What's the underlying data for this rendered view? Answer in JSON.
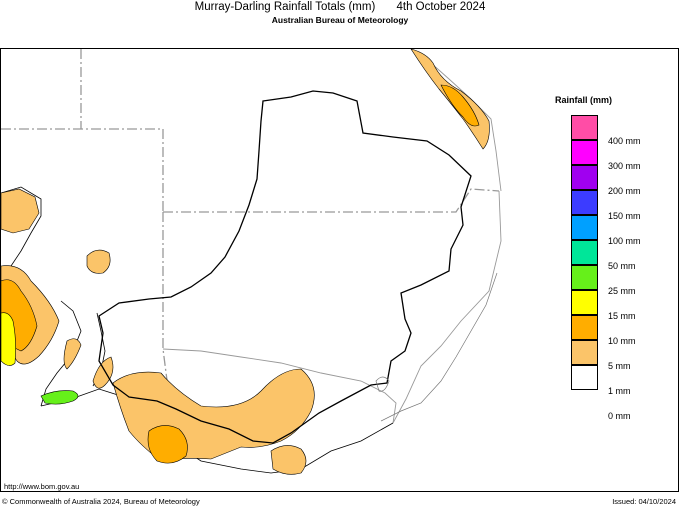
{
  "header": {
    "title": "Murray-Darling Rainfall Totals (mm)",
    "date": "4th October 2024",
    "subtitle": "Australian Bureau of Meteorology"
  },
  "legend": {
    "title": "Rainfall (mm)",
    "items": [
      {
        "label": "400 mm",
        "color": "#ff4da6"
      },
      {
        "label": "300 mm",
        "color": "#ff00ff"
      },
      {
        "label": "200 mm",
        "color": "#a000f0"
      },
      {
        "label": "150 mm",
        "color": "#3c3cff"
      },
      {
        "label": "100 mm",
        "color": "#00a0ff"
      },
      {
        "label": "50 mm",
        "color": "#00e699"
      },
      {
        "label": "25 mm",
        "color": "#66f01a"
      },
      {
        "label": "15 mm",
        "color": "#ffff00"
      },
      {
        "label": "10 mm",
        "color": "#ffad00"
      },
      {
        "label": "5 mm",
        "color": "#fbc469"
      },
      {
        "label": "1 mm",
        "color": "#ffffff"
      },
      {
        "label": "0 mm",
        "color": null
      }
    ]
  },
  "footer": {
    "url": "http://www.bom.gov.au",
    "copyright": "© Commonwealth of Australia 2024, Bureau of Meteorology",
    "issued": "Issued: 04/10/2024"
  }
}
